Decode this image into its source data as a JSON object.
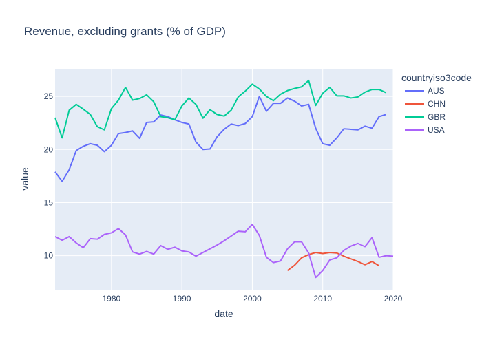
{
  "chart_data": {
    "type": "line",
    "title": "Revenue, excluding grants (% of GDP)",
    "xlabel": "date",
    "ylabel": "value",
    "xlim": [
      1972,
      2020
    ],
    "ylim": [
      6.8,
      27.6
    ],
    "xticks": [
      1980,
      1990,
      2000,
      2010,
      2020
    ],
    "yticks": [
      10,
      15,
      20,
      25
    ],
    "grid": true,
    "legend": {
      "title": "countryiso3code",
      "position": "right"
    },
    "series": [
      {
        "name": "AUS",
        "color": "#636efa",
        "points": [
          [
            1972,
            17.9
          ],
          [
            1973,
            17.0
          ],
          [
            1974,
            18.1
          ],
          [
            1975,
            19.9
          ],
          [
            1976,
            20.3
          ],
          [
            1977,
            20.55
          ],
          [
            1978,
            20.4
          ],
          [
            1979,
            19.8
          ],
          [
            1980,
            20.4
          ],
          [
            1981,
            21.5
          ],
          [
            1982,
            21.6
          ],
          [
            1983,
            21.75
          ],
          [
            1984,
            21.05
          ],
          [
            1985,
            22.55
          ],
          [
            1986,
            22.6
          ],
          [
            1987,
            23.25
          ],
          [
            1988,
            23.1
          ],
          [
            1989,
            22.8
          ],
          [
            1990,
            22.55
          ],
          [
            1991,
            22.4
          ],
          [
            1992,
            20.7
          ],
          [
            1993,
            20.0
          ],
          [
            1994,
            20.05
          ],
          [
            1995,
            21.2
          ],
          [
            1996,
            21.9
          ],
          [
            1997,
            22.4
          ],
          [
            1998,
            22.25
          ],
          [
            1999,
            22.45
          ],
          [
            2000,
            23.1
          ],
          [
            2001,
            25.0
          ],
          [
            2002,
            23.6
          ],
          [
            2003,
            24.35
          ],
          [
            2004,
            24.35
          ],
          [
            2005,
            24.85
          ],
          [
            2006,
            24.55
          ],
          [
            2007,
            24.1
          ],
          [
            2008,
            24.25
          ],
          [
            2009,
            22.0
          ],
          [
            2010,
            20.55
          ],
          [
            2011,
            20.4
          ],
          [
            2012,
            21.1
          ],
          [
            2013,
            21.95
          ],
          [
            2014,
            21.9
          ],
          [
            2015,
            21.85
          ],
          [
            2016,
            22.2
          ],
          [
            2017,
            22.0
          ],
          [
            2018,
            23.1
          ],
          [
            2019,
            23.3
          ]
        ]
      },
      {
        "name": "CHN",
        "color": "#ef553b",
        "points": [
          [
            2005,
            8.6
          ],
          [
            2006,
            9.1
          ],
          [
            2007,
            9.8
          ],
          [
            2008,
            10.1
          ],
          [
            2009,
            10.3
          ],
          [
            2010,
            10.2
          ],
          [
            2011,
            10.3
          ],
          [
            2012,
            10.25
          ],
          [
            2013,
            9.95
          ],
          [
            2014,
            9.7
          ],
          [
            2015,
            9.45
          ],
          [
            2016,
            9.15
          ],
          [
            2017,
            9.45
          ],
          [
            2018,
            9.05
          ]
        ]
      },
      {
        "name": "GBR",
        "color": "#00cc96",
        "points": [
          [
            1972,
            23.0
          ],
          [
            1973,
            21.1
          ],
          [
            1974,
            23.7
          ],
          [
            1975,
            24.25
          ],
          [
            1976,
            23.8
          ],
          [
            1977,
            23.3
          ],
          [
            1978,
            22.15
          ],
          [
            1979,
            21.85
          ],
          [
            1980,
            23.85
          ],
          [
            1981,
            24.65
          ],
          [
            1982,
            25.85
          ],
          [
            1983,
            24.65
          ],
          [
            1984,
            24.8
          ],
          [
            1985,
            25.15
          ],
          [
            1986,
            24.5
          ],
          [
            1987,
            23.1
          ],
          [
            1988,
            23.0
          ],
          [
            1989,
            22.8
          ],
          [
            1990,
            24.1
          ],
          [
            1991,
            24.85
          ],
          [
            1992,
            24.25
          ],
          [
            1993,
            22.95
          ],
          [
            1994,
            23.75
          ],
          [
            1995,
            23.3
          ],
          [
            1996,
            23.15
          ],
          [
            1997,
            23.7
          ],
          [
            1998,
            24.95
          ],
          [
            1999,
            25.5
          ],
          [
            2000,
            26.15
          ],
          [
            2001,
            25.7
          ],
          [
            2002,
            25.0
          ],
          [
            2003,
            24.6
          ],
          [
            2004,
            25.2
          ],
          [
            2005,
            25.55
          ],
          [
            2006,
            25.75
          ],
          [
            2007,
            25.9
          ],
          [
            2008,
            26.5
          ],
          [
            2009,
            24.15
          ],
          [
            2010,
            25.3
          ],
          [
            2011,
            25.85
          ],
          [
            2012,
            25.05
          ],
          [
            2013,
            25.05
          ],
          [
            2014,
            24.85
          ],
          [
            2015,
            24.95
          ],
          [
            2016,
            25.4
          ],
          [
            2017,
            25.65
          ],
          [
            2018,
            25.65
          ],
          [
            2019,
            25.35
          ]
        ]
      },
      {
        "name": "USA",
        "color": "#ab63fa",
        "points": [
          [
            1972,
            11.8
          ],
          [
            1973,
            11.45
          ],
          [
            1974,
            11.8
          ],
          [
            1975,
            11.2
          ],
          [
            1976,
            10.75
          ],
          [
            1977,
            11.6
          ],
          [
            1978,
            11.55
          ],
          [
            1979,
            12.0
          ],
          [
            1980,
            12.15
          ],
          [
            1981,
            12.55
          ],
          [
            1982,
            11.95
          ],
          [
            1983,
            10.35
          ],
          [
            1984,
            10.15
          ],
          [
            1985,
            10.4
          ],
          [
            1986,
            10.15
          ],
          [
            1987,
            10.95
          ],
          [
            1988,
            10.6
          ],
          [
            1989,
            10.8
          ],
          [
            1990,
            10.45
          ],
          [
            1991,
            10.35
          ],
          [
            1992,
            9.95
          ],
          [
            1993,
            10.3
          ],
          [
            1994,
            10.65
          ],
          [
            1995,
            11.0
          ],
          [
            1996,
            11.4
          ],
          [
            1997,
            11.85
          ],
          [
            1998,
            12.3
          ],
          [
            1999,
            12.25
          ],
          [
            2000,
            12.95
          ],
          [
            2001,
            11.9
          ],
          [
            2002,
            9.85
          ],
          [
            2003,
            9.35
          ],
          [
            2004,
            9.5
          ],
          [
            2005,
            10.65
          ],
          [
            2006,
            11.3
          ],
          [
            2007,
            11.3
          ],
          [
            2008,
            10.25
          ],
          [
            2009,
            7.95
          ],
          [
            2010,
            8.6
          ],
          [
            2011,
            9.6
          ],
          [
            2012,
            9.8
          ],
          [
            2013,
            10.5
          ],
          [
            2014,
            10.9
          ],
          [
            2015,
            11.15
          ],
          [
            2016,
            10.85
          ],
          [
            2017,
            11.7
          ],
          [
            2018,
            9.85
          ],
          [
            2019,
            10.0
          ],
          [
            2020,
            9.95
          ]
        ]
      }
    ]
  }
}
